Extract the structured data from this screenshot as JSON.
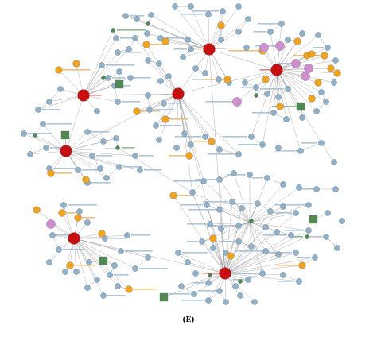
{
  "figure": {
    "panel_label": "(E)"
  },
  "legend_colors": {
    "gene_node": "#8fb1ca",
    "hub_node": "#c80e0e",
    "orange_node": "#f2a21b",
    "pink_node": "#cf8fcf",
    "green_node": "#4f8a4f"
  }
}
